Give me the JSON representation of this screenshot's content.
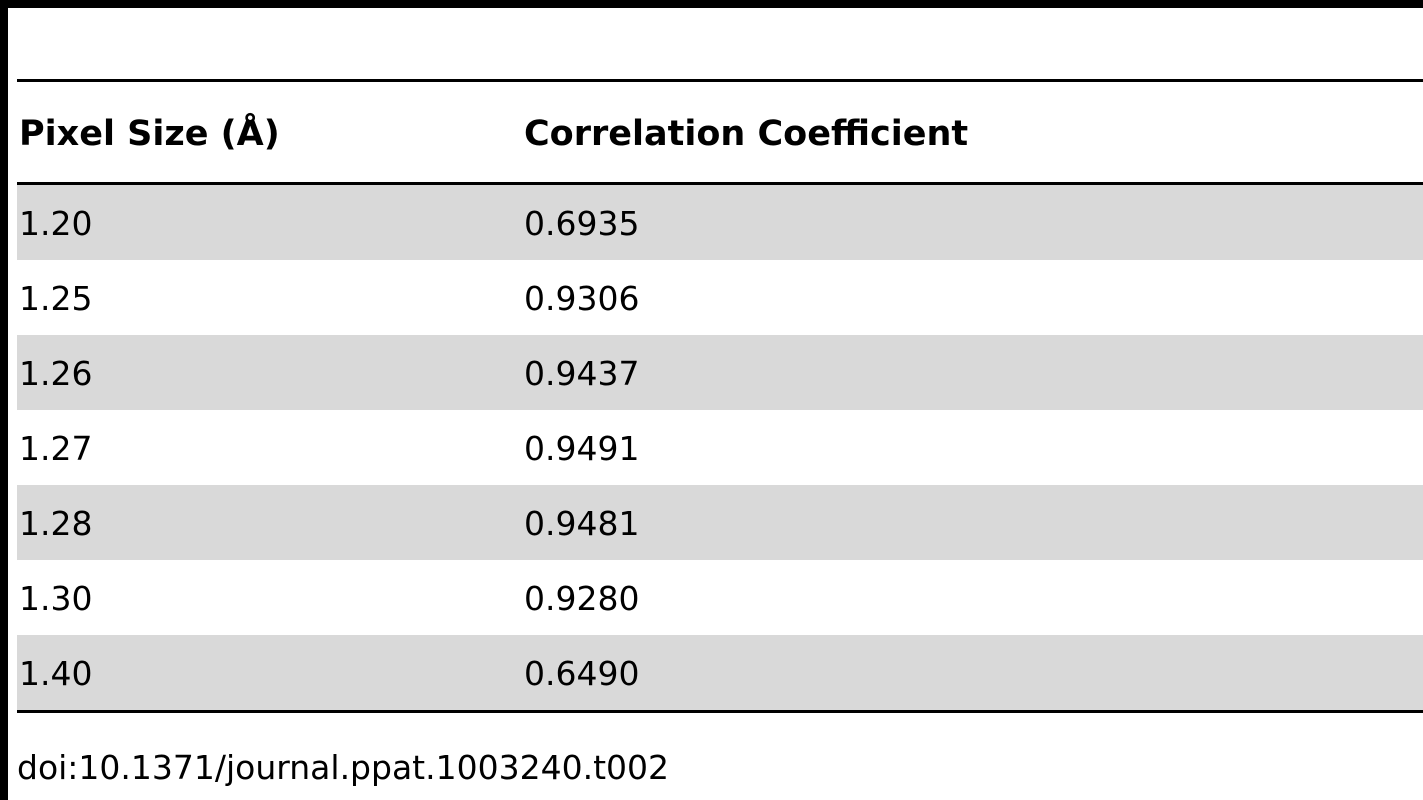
{
  "table": {
    "columns": [
      "Pixel Size (Å)",
      "Correlation Coefficient"
    ],
    "rows": [
      [
        "1.20",
        "0.6935"
      ],
      [
        "1.25",
        "0.9306"
      ],
      [
        "1.26",
        "0.9437"
      ],
      [
        "1.27",
        "0.9491"
      ],
      [
        "1.28",
        "0.9481"
      ],
      [
        "1.30",
        "0.9280"
      ],
      [
        "1.40",
        "0.6490"
      ]
    ],
    "shade_color": "#d9d9d9"
  },
  "doi": "doi:10.1371/journal.ppat.1003240.t002"
}
